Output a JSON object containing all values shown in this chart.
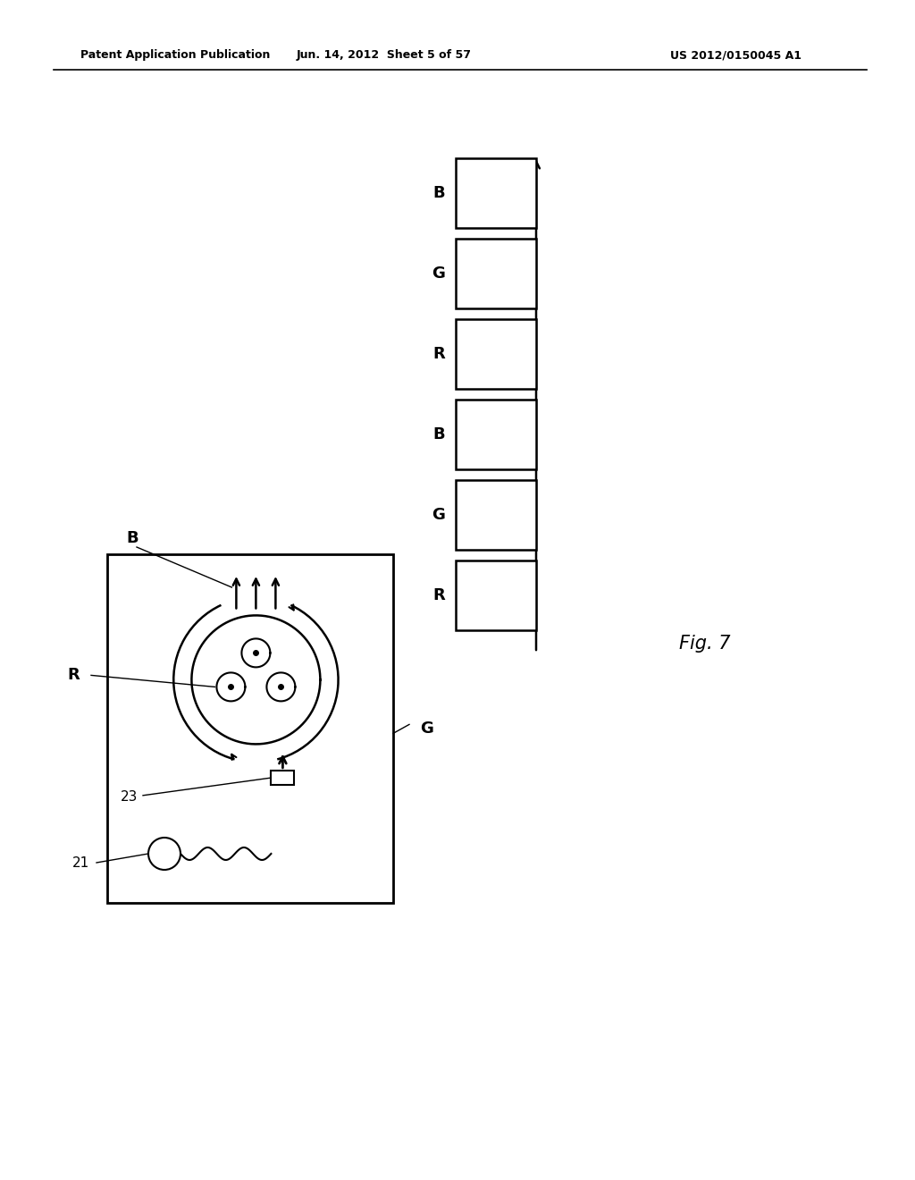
{
  "bg_color": "#ffffff",
  "header_left": "Patent Application Publication",
  "header_mid": "Jun. 14, 2012  Sheet 5 of 57",
  "header_right": "US 2012/0150045 A1",
  "fig_label": "Fig. 7",
  "boxes_labels": [
    "R",
    "G",
    "B",
    "R",
    "G",
    "B"
  ],
  "color_black": "#000000"
}
